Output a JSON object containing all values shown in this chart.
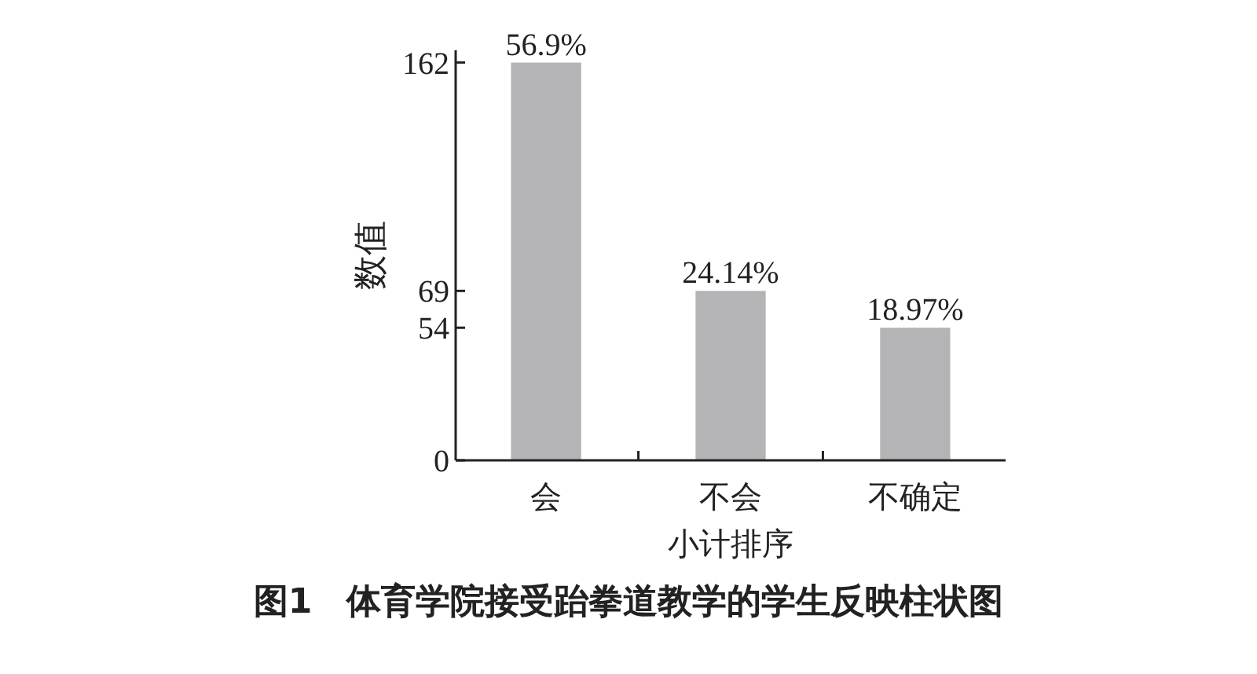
{
  "chart_data": {
    "type": "bar",
    "title": "图1　体育学院接受跆拳道教学的学生反映柱状图",
    "xlabel": "小计排序",
    "ylabel": "数值",
    "categories": [
      "会",
      "不会",
      "不确定"
    ],
    "values": [
      162,
      69,
      54
    ],
    "annotations": [
      {
        "text": "56.9%",
        "x": "会",
        "y": 162
      },
      {
        "text": "24.14%",
        "x": "不会",
        "y": 69
      },
      {
        "text": "18.97%",
        "x": "不确定",
        "y": 54
      }
    ],
    "color": "#b4b4b6",
    "ylim": [
      0,
      167
    ],
    "yticks": [
      0,
      54,
      69,
      162
    ],
    "grid": false
  }
}
